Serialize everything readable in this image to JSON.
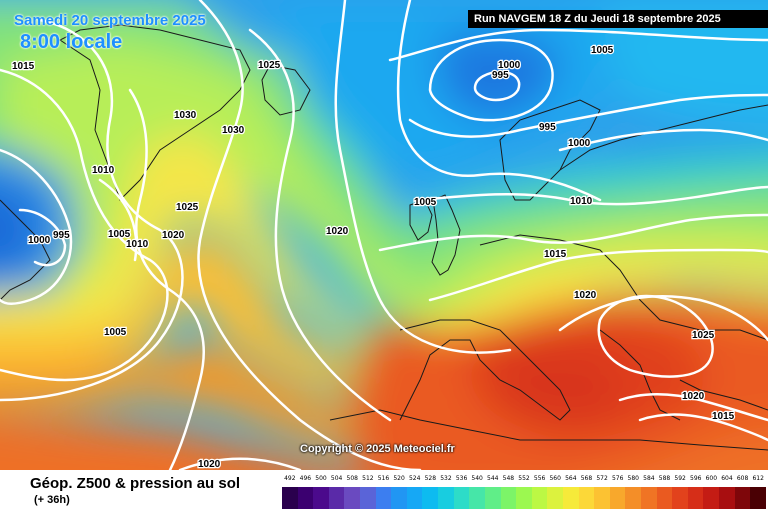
{
  "header": {
    "date_line": "Samedi 20 septembre 2025",
    "time_line": "8:00 locale",
    "run_banner": "Run NAVGEM 18 Z du Jeudi 18 septembre 2025"
  },
  "copyright": "Copyright © 2025 Meteociel.fr",
  "footer": {
    "title": "Géop. Z500 & pression au sol",
    "subtitle": "(+ 36h)"
  },
  "legend": {
    "values": [
      "492",
      "496",
      "500",
      "504",
      "508",
      "512",
      "516",
      "520",
      "524",
      "528",
      "532",
      "536",
      "540",
      "544",
      "548",
      "552",
      "556",
      "560",
      "564",
      "568",
      "572",
      "576",
      "580",
      "584",
      "588",
      "592",
      "596",
      "600",
      "604",
      "608",
      "612"
    ],
    "colors": [
      "#2a004d",
      "#3b0070",
      "#4b0a8c",
      "#5a2aa8",
      "#6a4ac0",
      "#5a64d8",
      "#3c7ef0",
      "#2196f3",
      "#16a8f5",
      "#0dbbf0",
      "#18cde0",
      "#2ddcc8",
      "#46e6a8",
      "#60ee88",
      "#7cf468",
      "#9cf850",
      "#bcf844",
      "#dcf23e",
      "#f6ea3a",
      "#fcd838",
      "#fcc232",
      "#f8a82c",
      "#f48e28",
      "#f07424",
      "#ea5a20",
      "#e2421c",
      "#d62e18",
      "#c41c14",
      "#a80e10",
      "#7e060a",
      "#4a0004"
    ]
  },
  "pressure_labels": [
    "1015",
    "1025",
    "1030",
    "1030",
    "1010",
    "1025",
    "1020",
    "1000",
    "995",
    "1005",
    "1010",
    "1005",
    "1020",
    "995",
    "1000",
    "1005",
    "995",
    "1000",
    "1005",
    "1010",
    "1015",
    "1020",
    "1025",
    "1020",
    "1015",
    "1020"
  ],
  "colors": {
    "isobar": "#ffffff",
    "coast": "#000000",
    "banner_bg": "#000000",
    "date_text": "#1e90ff"
  }
}
